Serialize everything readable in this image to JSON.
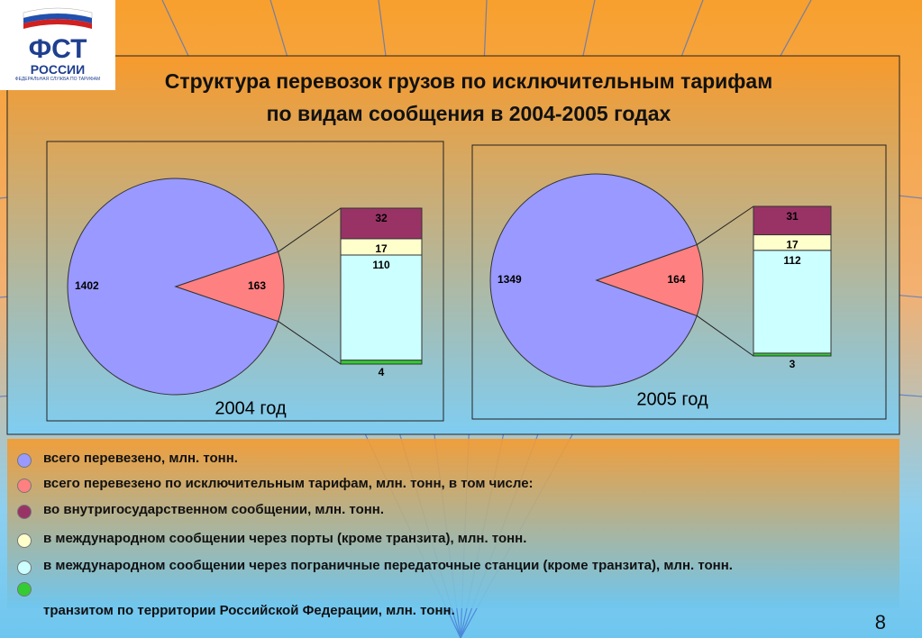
{
  "logo": {
    "name": "ФСТ",
    "country": "РОССИИ",
    "caption": "ФЕДЕРАЛЬНАЯ СЛУЖБА ПО ТАРИФАМ"
  },
  "title": "Структура перевозок грузов по исключительным тарифам по видам сообщения в 2004-2005 годах",
  "page_number": "8",
  "legend": [
    {
      "name": "всего перевезено, млн. тонн.",
      "color": "#9999ff"
    },
    {
      "name": "всего перевезено по исключительным тарифам, млн. тонн, в том числе:",
      "color": "#ff8080"
    },
    {
      "name": "во внутригосударственном сообщении, млн. тонн.",
      "color": "#993366"
    },
    {
      "name": "в международном сообщении через порты (кроме транзита), млн. тонн.",
      "color": "#ffffcc"
    },
    {
      "name": "в международном сообщении через пограничные передаточные станции (кроме транзита), млн. тонн.",
      "color": "#ccffff"
    },
    {
      "name": "транзитом по территории Российской Федерации, млн. тонн.",
      "color": "#33cc33"
    }
  ],
  "chart_data": [
    {
      "type": "pie-of-bar",
      "title": "2004 год",
      "values": [
        1402,
        163
      ],
      "bar_values": [
        32,
        17,
        110,
        4
      ]
    },
    {
      "type": "pie-of-bar",
      "title": "2005 год",
      "values": [
        1349,
        164
      ],
      "bar_values": [
        31,
        17,
        112,
        3
      ]
    }
  ]
}
